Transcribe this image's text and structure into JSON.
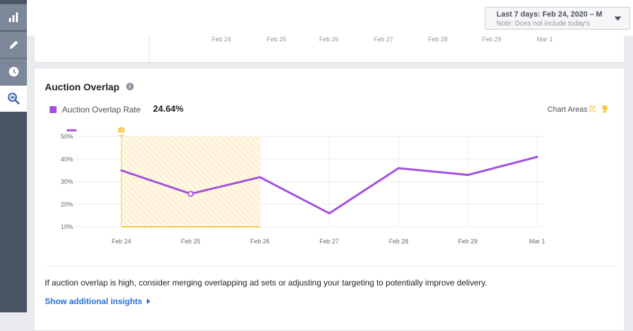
{
  "sidebar": {
    "items": [
      {
        "icon": "bar-chart-icon"
      },
      {
        "icon": "pencil-icon"
      },
      {
        "icon": "clock-icon"
      },
      {
        "icon": "magnifier-chart-icon"
      }
    ]
  },
  "date_range": {
    "label": "Last 7 days: Feb 24, 2020 – M",
    "note": "Note: Does not include today's"
  },
  "top_chart": {
    "ticks": [
      "Feb 24",
      "Feb 25",
      "Feb 26",
      "Feb 27",
      "Feb 28",
      "Feb 29",
      "Mar 1"
    ]
  },
  "section": {
    "title": "Auction Overlap",
    "info_icon": "i",
    "legend_label": "Auction Overlap Rate",
    "legend_value": "24.64%",
    "chart_areas_label": "Chart Areas",
    "insight_text": "If auction overlap is high, consider merging overlapping ad sets or adjusting your targeting to potentially improve delivery.",
    "link_text": "Show additional insights"
  },
  "colors": {
    "series": "#a34fde",
    "highlight": "#f7c948",
    "link": "#216fdb"
  },
  "chart_data": {
    "type": "line",
    "title": "Auction Overlap Rate",
    "categories": [
      "Feb 24",
      "Feb 25",
      "Feb 26",
      "Feb 27",
      "Feb 28",
      "Feb 29",
      "Mar 1"
    ],
    "yticks": [
      "10%",
      "20%",
      "30%",
      "40%",
      "50%"
    ],
    "ylim": [
      10,
      50
    ],
    "series": [
      {
        "name": "Auction Overlap Rate",
        "values": [
          35,
          24.64,
          32,
          16,
          36,
          33,
          41
        ]
      }
    ],
    "highlight_range": [
      "Feb 24",
      "Feb 26"
    ],
    "selected_point": "Feb 25",
    "xlabel": "",
    "ylabel": ""
  }
}
